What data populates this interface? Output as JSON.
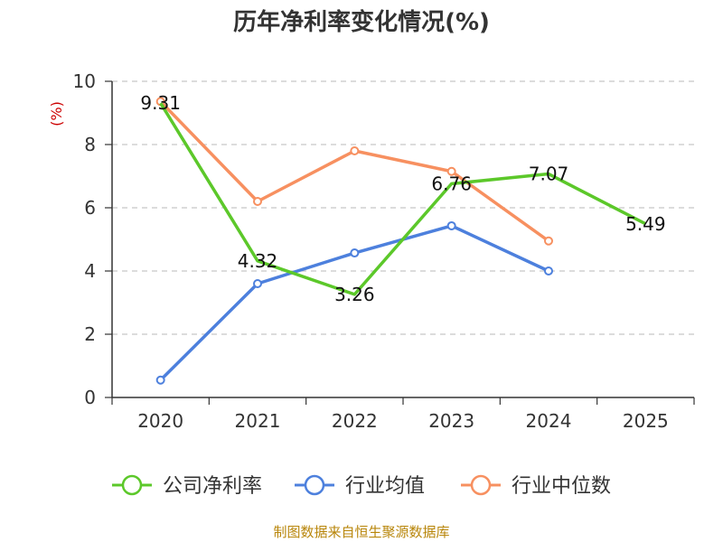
{
  "title": "历年净利率变化情况(%)",
  "unit": "(%)",
  "footer": "制图数据来自恒生聚源数据库",
  "chart_data": {
    "type": "line",
    "title": "历年净利率变化情况(%)",
    "ylabel": "(%)",
    "xlabel": "",
    "categories": [
      "2020",
      "2021",
      "2022",
      "2023",
      "2024",
      "2025"
    ],
    "ylim": [
      0,
      10
    ],
    "yticks": [
      0,
      2,
      4,
      6,
      8,
      10
    ],
    "grid": true,
    "legend_position": "bottom",
    "series": [
      {
        "name": "公司净利率",
        "color": "#5cc82a",
        "values": [
          9.31,
          4.32,
          3.26,
          6.76,
          7.07,
          5.49
        ],
        "labels": [
          "9.31",
          "4.32",
          "3.26",
          "6.76",
          "7.07",
          "5.49"
        ]
      },
      {
        "name": "行业均值",
        "color": "#4d80dd",
        "values": [
          0.55,
          3.6,
          4.57,
          5.43,
          4.0,
          null
        ]
      },
      {
        "name": "行业中位数",
        "color": "#f79060",
        "values": [
          9.36,
          6.2,
          7.8,
          7.15,
          4.95,
          null
        ]
      }
    ]
  }
}
